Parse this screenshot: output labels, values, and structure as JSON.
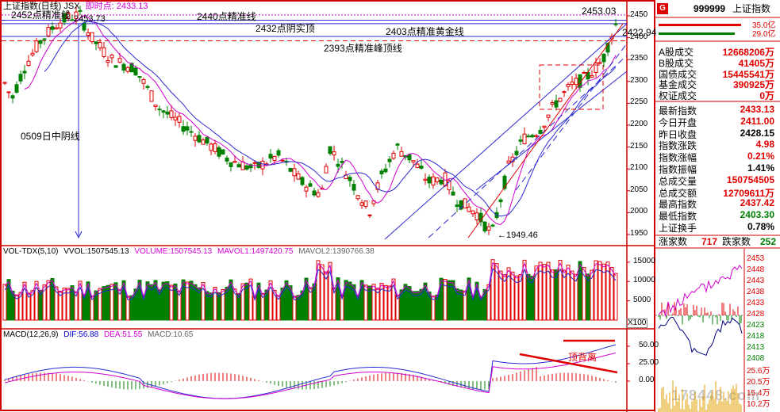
{
  "chart_header": {
    "title": "上证指数(日线)",
    "indicator": "JSX",
    "realtime_label": "即时点:",
    "realtime_value": "2433.13"
  },
  "annotations": {
    "line_2452": "2452点精准线",
    "line_2440": "2440点精准线",
    "line_2432": "2432点阴实顶",
    "line_2403": "2403点精准黄金线",
    "line_2393": "2393点精准峰顶线",
    "line_0509": "0509日中阴线",
    "peak_value": "2453.73",
    "top_value": "2453.03",
    "right_value": "2422.94",
    "low_value": "1949.46",
    "divergence": "顶背离"
  },
  "price_axis": [
    "2450",
    "2400",
    "2350",
    "2300",
    "2250",
    "2200",
    "2150",
    "2100",
    "2050",
    "2000",
    "1950"
  ],
  "volume_header": {
    "name": "VOL-TDX(5,10)",
    "vvol_label": "VVOL:",
    "vvol": "1507545.13",
    "volume_label": "VOLUME:",
    "volume": "1507545.13",
    "mavol1_label": "MAVOL1:",
    "mavol1": "1497420.75",
    "mavol2_label": "MAVOL2:",
    "mavol2": "1390766.38"
  },
  "volume_axis": [
    "15000",
    "10000",
    "5000"
  ],
  "volume_unit": "X100",
  "macd_header": {
    "name": "MACD(12,26,9)",
    "dif_label": "DIF:",
    "dif": "56.88",
    "dea_label": "DEA:",
    "dea": "51.55",
    "macd_label": "MACD:",
    "macd": "10.65"
  },
  "macd_axis": [
    "50.00",
    "25.00",
    "0.00"
  ],
  "watermark": "178448.com",
  "panel": {
    "badge": "G",
    "code": "999999",
    "name": "上证指数",
    "bar_top_pct": "35.0亿",
    "bar_bot_pct": "29.0亿",
    "vol_rows": [
      {
        "label": "A股成交",
        "value": "12668206万"
      },
      {
        "label": "B股成交",
        "value": "41405万"
      },
      {
        "label": "国债成交",
        "value": "15445541万"
      },
      {
        "label": "基金成交",
        "value": "390925万"
      },
      {
        "label": "权证成交",
        "value": "0万"
      }
    ],
    "quote_rows": [
      {
        "label": "最新指数",
        "value": "2433.13",
        "color": "red"
      },
      {
        "label": "今日开盘",
        "value": "2411.00",
        "color": "red"
      },
      {
        "label": "昨日收盘",
        "value": "2428.15",
        "color": "black"
      },
      {
        "label": "指数涨跌",
        "value": "4.98",
        "color": "red"
      },
      {
        "label": "指数涨幅",
        "value": "0.21%",
        "color": "red"
      },
      {
        "label": "指数振幅",
        "value": "1.41%",
        "color": "black"
      },
      {
        "label": "总成交量",
        "value": "150754505",
        "color": "red"
      },
      {
        "label": "总成交额",
        "value": "12709611万",
        "color": "red"
      },
      {
        "label": "最高指数",
        "value": "2437.42",
        "color": "red"
      },
      {
        "label": "最低指数",
        "value": "2403.30",
        "color": "green"
      },
      {
        "label": "上证换手",
        "value": "0.78%",
        "color": "black"
      }
    ],
    "rise_label": "涨家数",
    "rise_value": "717",
    "fall_label": "跌家数",
    "fall_value": "252",
    "mini_axis": [
      "2453",
      "2448",
      "2443",
      "2438",
      "2433",
      "2428",
      "2423",
      "2418",
      "2413",
      "2408"
    ],
    "mini_vol_axis": [
      "25.6万",
      "20.5万",
      "15.4万",
      "10.2万"
    ]
  }
}
